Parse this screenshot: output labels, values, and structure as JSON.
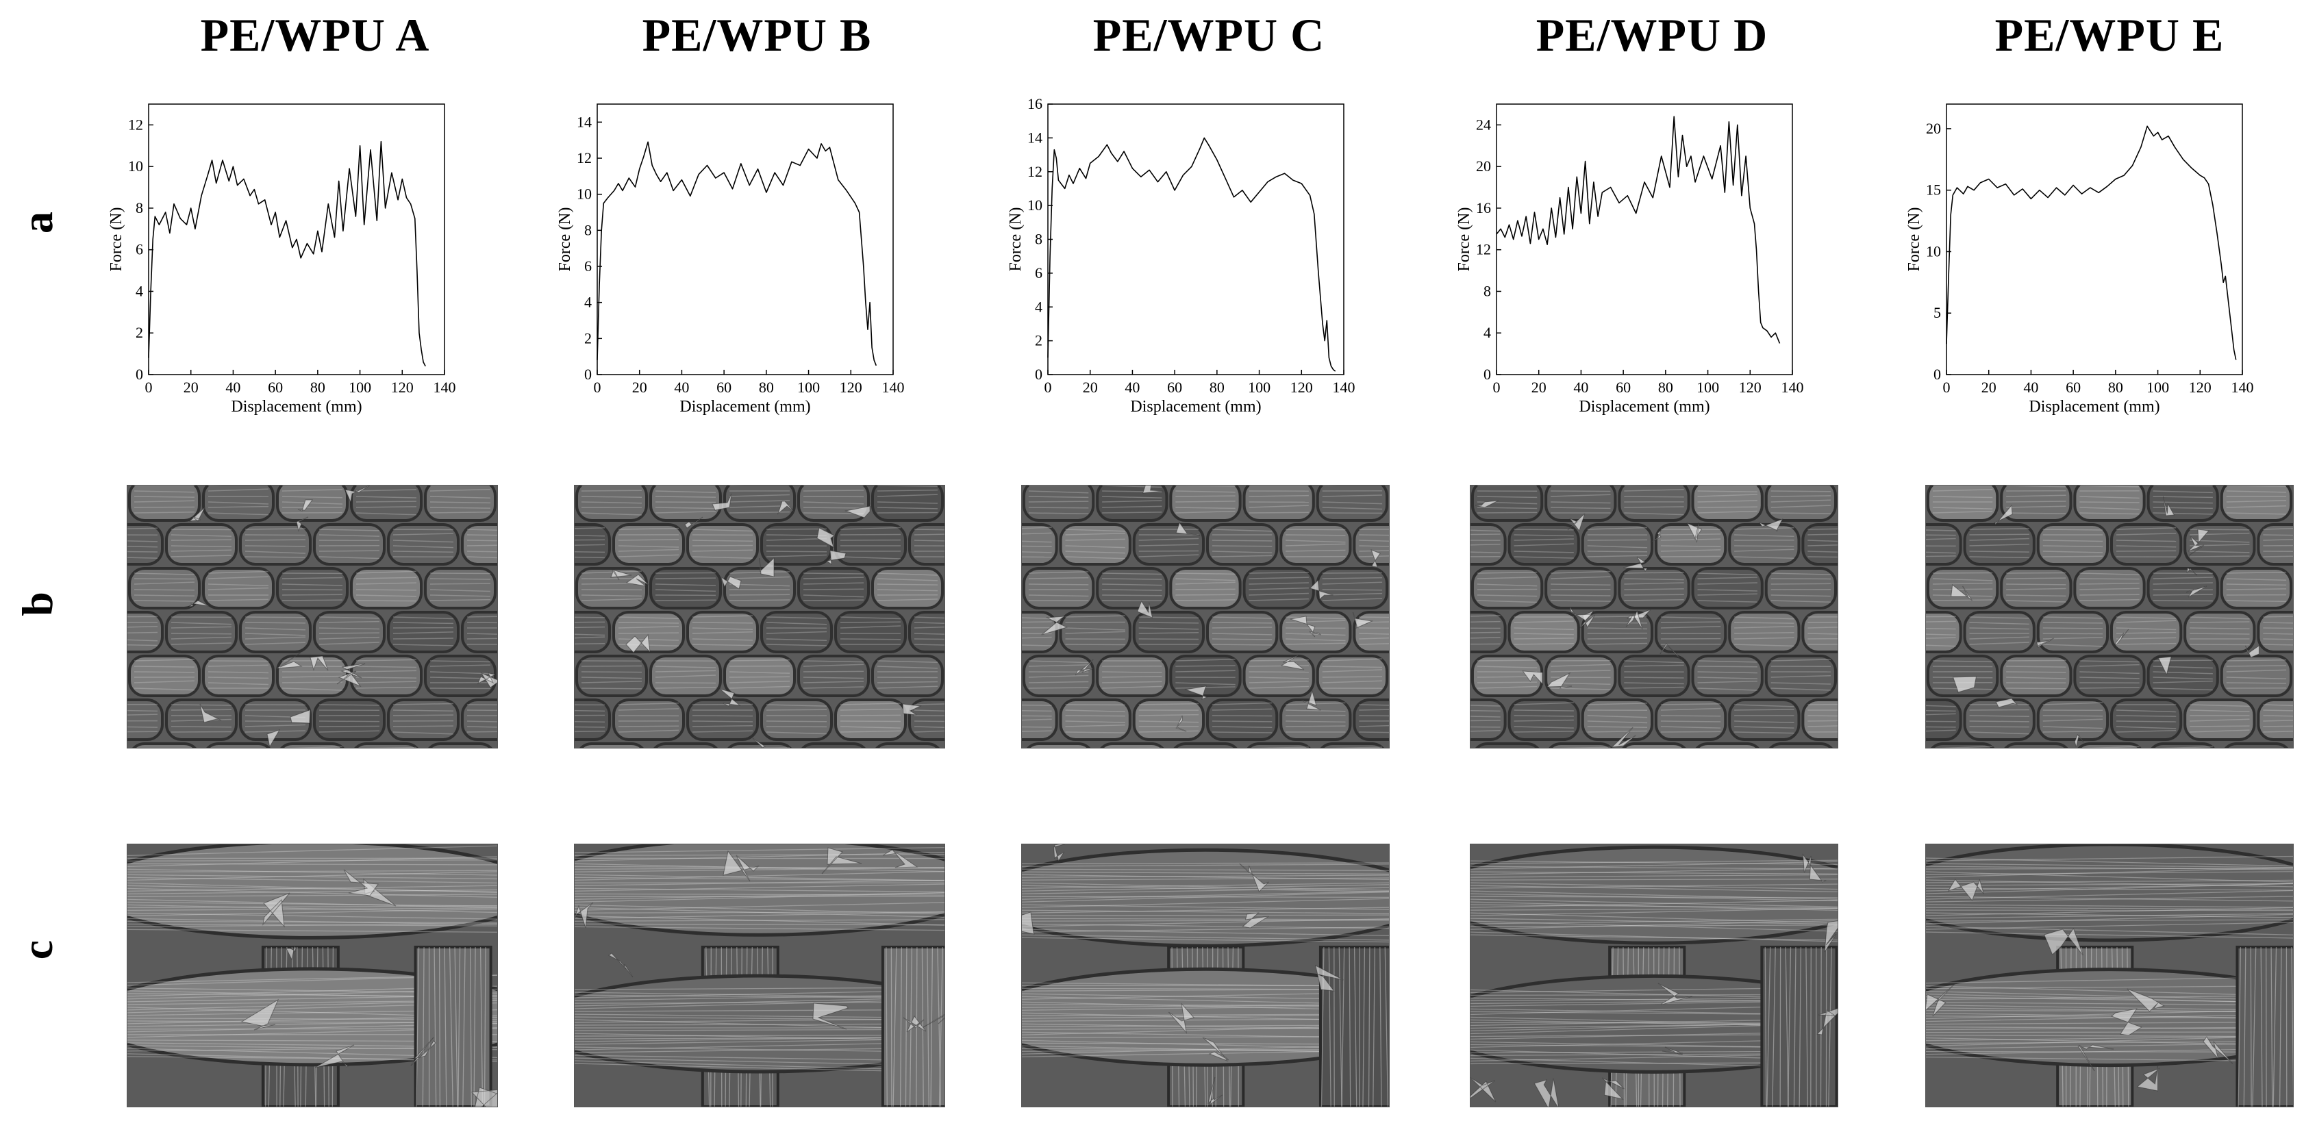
{
  "titles": [
    "PE/WPU A",
    "PE/WPU B",
    "PE/WPU C",
    "PE/WPU D",
    "PE/WPU E"
  ],
  "row_labels": [
    "a",
    "b",
    "c"
  ],
  "chart_data": [
    {
      "type": "line",
      "xlabel": "Displacement (mm)",
      "ylabel": "Force (N)",
      "xlim": [
        0,
        140
      ],
      "ylim": [
        0,
        13
      ],
      "xticks": [
        0,
        20,
        40,
        60,
        80,
        100,
        120,
        140
      ],
      "yticks": [
        0,
        2,
        4,
        6,
        8,
        10,
        12
      ],
      "x": [
        0,
        1,
        2,
        3,
        5,
        8,
        10,
        12,
        15,
        18,
        20,
        22,
        25,
        28,
        30,
        32,
        35,
        38,
        40,
        42,
        45,
        48,
        50,
        52,
        55,
        58,
        60,
        62,
        65,
        68,
        70,
        72,
        75,
        78,
        80,
        82,
        85,
        88,
        90,
        92,
        95,
        98,
        100,
        102,
        105,
        108,
        110,
        112,
        115,
        118,
        120,
        122,
        124,
        126,
        127,
        128,
        129,
        130,
        131
      ],
      "y": [
        0.8,
        4,
        6.5,
        7.6,
        7.2,
        7.8,
        6.8,
        8.2,
        7.5,
        7.2,
        8,
        7,
        8.6,
        9.6,
        10.3,
        9.2,
        10.3,
        9.3,
        10,
        9.1,
        9.4,
        8.6,
        8.9,
        8.2,
        8.4,
        7.2,
        7.8,
        6.6,
        7.4,
        6.1,
        6.5,
        5.6,
        6.3,
        5.8,
        6.9,
        5.9,
        8.2,
        6.6,
        9.3,
        6.9,
        9.9,
        7.6,
        11,
        7.2,
        10.8,
        7.4,
        11.2,
        8,
        9.7,
        8.4,
        9.4,
        8.5,
        8.2,
        7.5,
        5,
        2,
        1.2,
        0.6,
        0.4
      ]
    },
    {
      "type": "line",
      "xlabel": "Displacement (mm)",
      "ylabel": "Force (N)",
      "xlim": [
        0,
        140
      ],
      "ylim": [
        0,
        15
      ],
      "xticks": [
        0,
        20,
        40,
        60,
        80,
        100,
        120,
        140
      ],
      "yticks": [
        0,
        2,
        4,
        6,
        8,
        10,
        12,
        14
      ],
      "x": [
        0,
        1,
        2,
        3,
        5,
        8,
        10,
        12,
        15,
        18,
        20,
        22,
        24,
        26,
        28,
        30,
        33,
        36,
        40,
        44,
        48,
        52,
        56,
        60,
        64,
        68,
        72,
        76,
        80,
        84,
        88,
        92,
        96,
        100,
        104,
        106,
        108,
        110,
        114,
        118,
        122,
        124,
        126,
        127,
        128,
        129,
        130,
        131,
        132
      ],
      "y": [
        0.8,
        5,
        8,
        9.5,
        9.8,
        10.2,
        10.6,
        10.2,
        10.9,
        10.4,
        11.4,
        12.1,
        12.9,
        11.6,
        11.1,
        10.7,
        11.2,
        10.2,
        10.8,
        9.9,
        11.1,
        11.6,
        10.9,
        11.2,
        10.3,
        11.7,
        10.5,
        11.4,
        10.1,
        11.2,
        10.5,
        11.8,
        11.6,
        12.5,
        12,
        12.8,
        12.4,
        12.6,
        10.8,
        10.2,
        9.5,
        9,
        6,
        4,
        2.5,
        4,
        1.5,
        0.8,
        0.5
      ]
    },
    {
      "type": "line",
      "xlabel": "Displacement (mm)",
      "ylabel": "Force (N)",
      "xlim": [
        0,
        140
      ],
      "ylim": [
        0,
        16
      ],
      "xticks": [
        0,
        20,
        40,
        60,
        80,
        100,
        120,
        140
      ],
      "yticks": [
        0,
        2,
        4,
        6,
        8,
        10,
        12,
        14,
        16
      ],
      "x": [
        0,
        1,
        2,
        3,
        4,
        5,
        8,
        10,
        12,
        15,
        18,
        20,
        24,
        28,
        30,
        33,
        36,
        40,
        44,
        48,
        52,
        56,
        60,
        64,
        68,
        72,
        74,
        76,
        80,
        84,
        88,
        92,
        96,
        100,
        104,
        108,
        112,
        116,
        120,
        124,
        126,
        128,
        130,
        131,
        132,
        133,
        134,
        135,
        136
      ],
      "y": [
        1,
        7,
        11,
        13.3,
        12.8,
        11.5,
        11,
        11.8,
        11.3,
        12.2,
        11.6,
        12.5,
        12.9,
        13.6,
        13.1,
        12.6,
        13.2,
        12.2,
        11.7,
        12.1,
        11.4,
        12,
        10.9,
        11.8,
        12.3,
        13.4,
        14,
        13.6,
        12.7,
        11.6,
        10.5,
        10.9,
        10.2,
        10.8,
        11.4,
        11.7,
        11.9,
        11.5,
        11.3,
        10.6,
        9.5,
        6,
        3,
        2,
        3.2,
        1,
        0.5,
        0.3,
        0.2
      ]
    },
    {
      "type": "line",
      "xlabel": "Displacement (mm)",
      "ylabel": "Force (N)",
      "xlim": [
        0,
        140
      ],
      "ylim": [
        0,
        26
      ],
      "xticks": [
        0,
        20,
        40,
        60,
        80,
        100,
        120,
        140
      ],
      "yticks": [
        0,
        4,
        8,
        12,
        16,
        20,
        24
      ],
      "x": [
        0,
        2,
        4,
        6,
        8,
        10,
        12,
        14,
        16,
        18,
        20,
        22,
        24,
        26,
        28,
        30,
        32,
        34,
        36,
        38,
        40,
        42,
        44,
        46,
        48,
        50,
        54,
        58,
        62,
        66,
        70,
        74,
        78,
        82,
        84,
        86,
        88,
        90,
        92,
        94,
        98,
        102,
        106,
        108,
        110,
        112,
        114,
        116,
        118,
        120,
        122,
        123,
        124,
        125,
        126,
        128,
        130,
        132,
        134
      ],
      "y": [
        13.5,
        14,
        13.2,
        14.4,
        13,
        14.8,
        13.3,
        15.2,
        12.6,
        15.6,
        13,
        14,
        12.5,
        16,
        13.2,
        17,
        13.5,
        18,
        14,
        19,
        15.5,
        20.5,
        14.5,
        18.5,
        15.2,
        17.5,
        18,
        16.5,
        17.2,
        15.5,
        18.5,
        17,
        21,
        18,
        24.8,
        19,
        23,
        20,
        21,
        18.5,
        21,
        18.8,
        22,
        17.5,
        24.3,
        18.2,
        24,
        17.2,
        21,
        16,
        14.5,
        12,
        8,
        5,
        4.5,
        4.2,
        3.6,
        4,
        3
      ]
    },
    {
      "type": "line",
      "xlabel": "Displacement (mm)",
      "ylabel": "Force (N)",
      "xlim": [
        0,
        140
      ],
      "ylim": [
        0,
        22
      ],
      "xticks": [
        0,
        20,
        40,
        60,
        80,
        100,
        120,
        140
      ],
      "yticks": [
        0,
        5,
        10,
        15,
        20
      ],
      "x": [
        0,
        1,
        2,
        3,
        5,
        8,
        10,
        13,
        16,
        20,
        24,
        28,
        32,
        36,
        40,
        44,
        48,
        52,
        56,
        60,
        64,
        68,
        72,
        76,
        80,
        84,
        88,
        92,
        95,
        98,
        100,
        102,
        105,
        108,
        112,
        116,
        120,
        122,
        124,
        126,
        128,
        130,
        131,
        132,
        134,
        136,
        137
      ],
      "y": [
        2.5,
        8,
        13,
        14.6,
        15.2,
        14.7,
        15.3,
        15,
        15.6,
        15.9,
        15.2,
        15.5,
        14.6,
        15.1,
        14.3,
        15,
        14.4,
        15.2,
        14.6,
        15.4,
        14.7,
        15.2,
        14.8,
        15.3,
        15.9,
        16.2,
        17,
        18.5,
        20.2,
        19.4,
        19.7,
        19.1,
        19.4,
        18.5,
        17.5,
        16.8,
        16.2,
        16,
        15.5,
        13.8,
        11.5,
        9,
        7.5,
        8,
        5,
        2,
        1.2
      ]
    }
  ]
}
